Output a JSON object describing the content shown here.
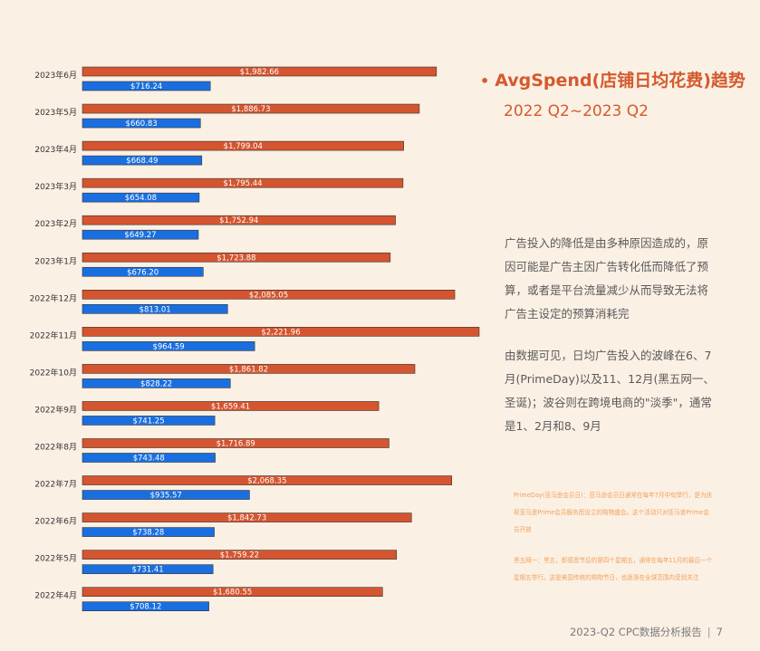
{
  "chart_data": {
    "type": "bar",
    "orientation": "horizontal",
    "categories": [
      "2023年6月",
      "2023年5月",
      "2023年4月",
      "2023年3月",
      "2023年2月",
      "2023年1月",
      "2022年12月",
      "2022年11月",
      "2022年10月",
      "2022年9月",
      "2022年8月",
      "2022年7月",
      "2022年6月",
      "2022年5月",
      "2022年4月"
    ],
    "series": [
      {
        "color": "#d4552f",
        "values": [
          1982.66,
          1886.73,
          1799.04,
          1795.44,
          1752.94,
          1723.88,
          2085.05,
          2221.96,
          1861.82,
          1659.41,
          1716.89,
          2068.35,
          1842.73,
          1759.22,
          1680.55
        ],
        "labels": [
          "$1,982.66",
          "$1,886.73",
          "$1,799.04",
          "$1,795.44",
          "$1,752.94",
          "$1,723.88",
          "$2,085.05",
          "$2,221.96",
          "$1,861.82",
          "$1,659.41",
          "$1,716.89",
          "$2,068.35",
          "$1,842.73",
          "$1,759.22",
          "$1,680.55"
        ]
      },
      {
        "color": "#1a6fe0",
        "values": [
          716.24,
          660.83,
          668.49,
          654.08,
          649.27,
          676.2,
          813.01,
          964.59,
          828.22,
          741.25,
          743.48,
          935.57,
          738.28,
          731.41,
          708.12
        ],
        "labels": [
          "$716.24",
          "$660.83",
          "$668.49",
          "$654.08",
          "$649.27",
          "$676.20",
          "$813.01",
          "$964.59",
          "$828.22",
          "$741.25",
          "$743.48",
          "$935.57",
          "$738.28",
          "$731.41",
          "$708.12"
        ]
      }
    ],
    "xlim": [
      0,
      2221.96
    ],
    "grid": false,
    "legend": "none"
  },
  "title": {
    "bullet": "•",
    "line1": "AvgSpend(店铺日均花费)趋势",
    "line2": "2022 Q2~2023 Q2"
  },
  "para1": "广告投入的降低是由多种原因造成的，原因可能是广告主因广告转化低而降低了预算，或者是平台流量减少从而导致无法将广告主设定的预算消耗完",
  "para2": "由数据可见，日均广告投入的波峰在6、7月(PrimeDay)以及11、12月(黑五网一、圣诞)；波谷则在跨境电商的\"淡季\"，通常是1、2月和8、9月",
  "note1": "PrimeDay(亚马逊会员日)：亚马逊会员日通常在每年7月中旬举行，是为庆祝亚马逊Prime会员服务而设立的购物盛会。这个活动只对亚马逊Prime会员开放",
  "note2": "黑五网一：黑五，即感恩节后的第四个星期五，通常在每年11月的最后一个星期五举行。这是美国传统的购物节日，也逐渐在全球范围内受到关注",
  "footer": {
    "text": "2023-Q2 CPC数据分析报告",
    "separator": "|",
    "page": "7"
  }
}
